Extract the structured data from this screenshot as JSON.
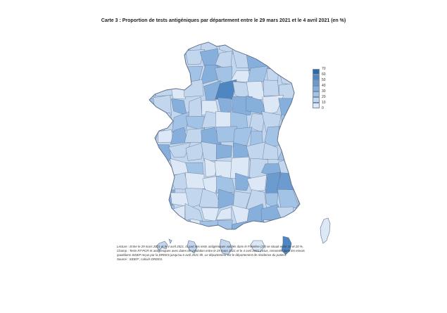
{
  "title": "Carte 3 : Proportion de tests antigéniques par département entre le 29 mars 2021 et le 4 avril 2021 (en %)",
  "legend": {
    "labels": [
      "70",
      "60",
      "50",
      "40",
      "30",
      "20",
      "10",
      "0"
    ],
    "colors": [
      "#2a6aa8",
      "#4d86c0",
      "#6c9bd0",
      "#86afdc",
      "#a3c3e6",
      "#c2d6ee",
      "#dde8f6",
      "#f4f8fd"
    ]
  },
  "colors": {
    "border": "#5d6f8a",
    "water": "#ffffff"
  },
  "notes": [
    "Lecture : Entre le 29 mars 2021 et le 4 avril 2021, la part des tests antigéniques validés dans le Finistère (29) se situait entre 10 et 20 %.",
    "Champ : Tests RT-PCR et antigéniques avec dates de validation entre le 29 mars 2021 et le 4 avril 2021 inclus, remontés dans les envois",
    "quotidiens SIDEP reçus par la DREES jusqu'au 6 avril 2021 5h. Le département est le département de résidence du patient.",
    "Source : SIDEP ; calculs DREES."
  ]
}
